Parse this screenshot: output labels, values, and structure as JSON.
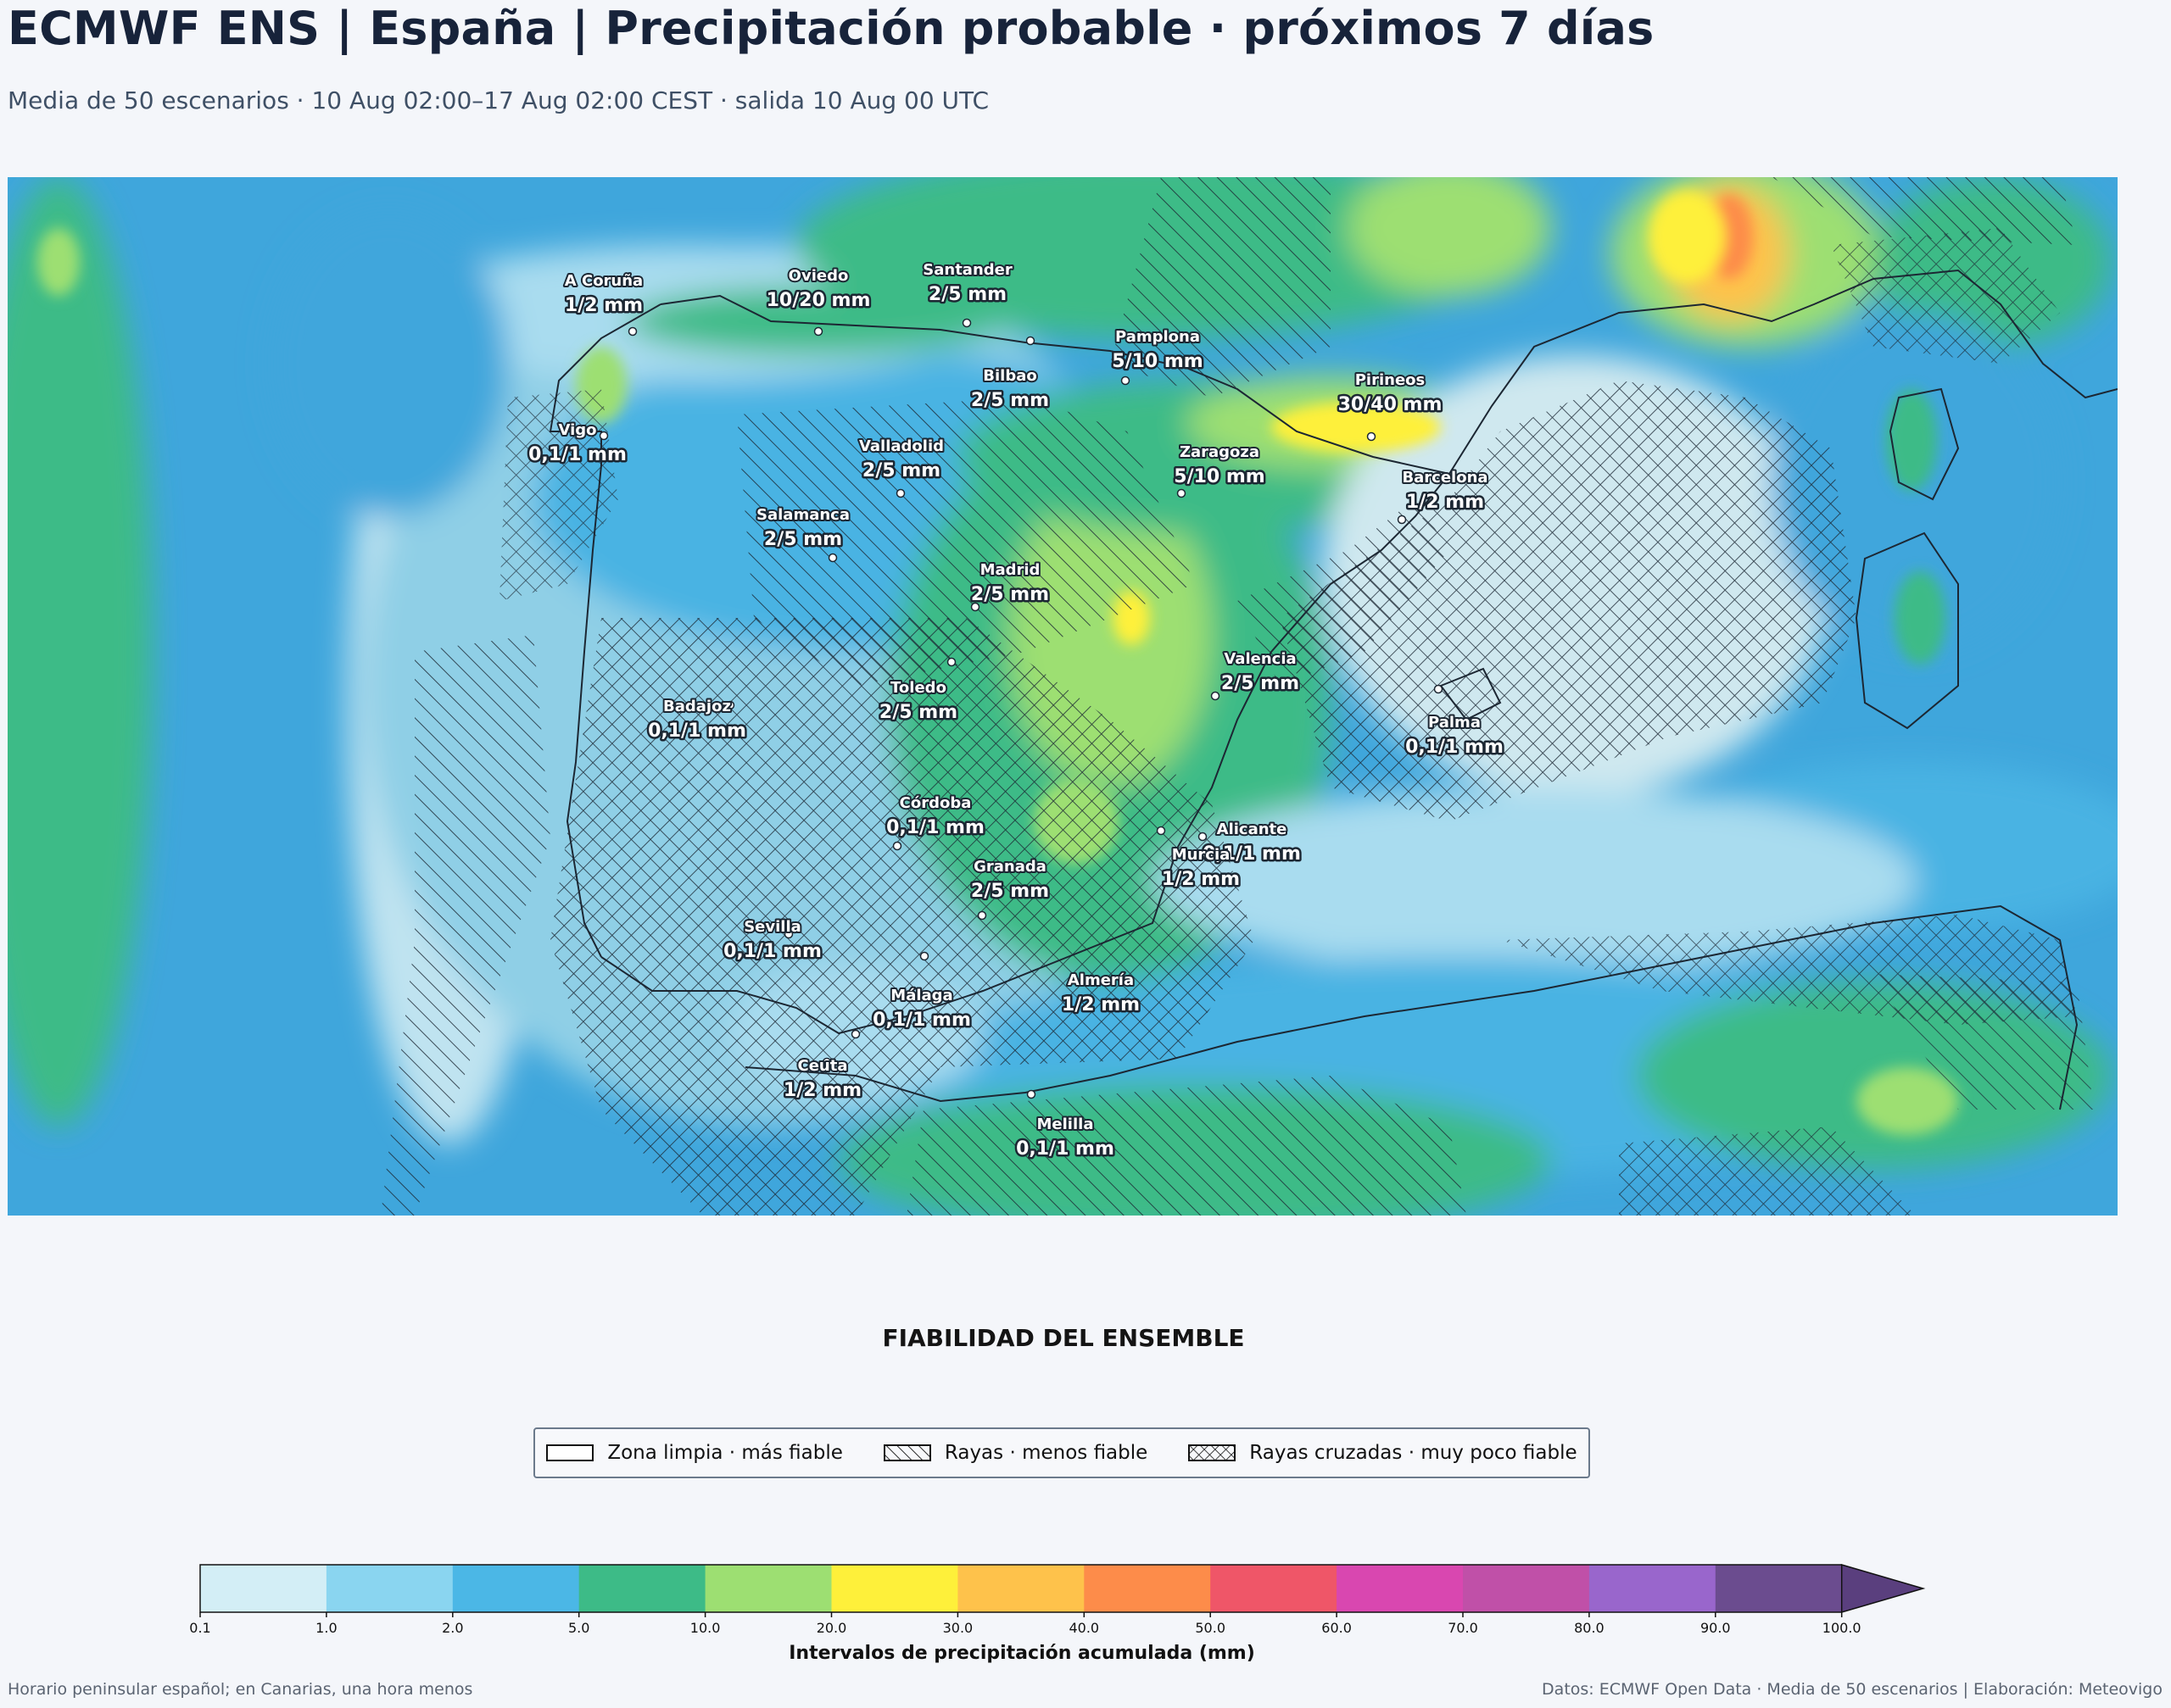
{
  "header": {
    "title": "ECMWF ENS | España | Precipitación probable · próximos 7 días",
    "subtitle": "Media de 50 escenarios · 10 Aug 02:00–17 Aug 02:00 CEST · salida 10 Aug 00 UTC"
  },
  "map": {
    "cities": [
      {
        "name": "A Coruña",
        "value": "1/2 mm"
      },
      {
        "name": "Oviedo",
        "value": "10/20 mm"
      },
      {
        "name": "Santander",
        "value": "2/5 mm"
      },
      {
        "name": "Pamplona",
        "value": "5/10 mm"
      },
      {
        "name": "Bilbao",
        "value": "2/5 mm"
      },
      {
        "name": "Pirineos",
        "value": "30/40 mm"
      },
      {
        "name": "Vigo",
        "value": "0,1/1 mm"
      },
      {
        "name": "Valladolid",
        "value": "2/5 mm"
      },
      {
        "name": "Zaragoza",
        "value": "5/10 mm"
      },
      {
        "name": "Barcelona",
        "value": "1/2 mm"
      },
      {
        "name": "Salamanca",
        "value": "2/5 mm"
      },
      {
        "name": "Madrid",
        "value": "2/5 mm"
      },
      {
        "name": "Valencia",
        "value": "2/5 mm"
      },
      {
        "name": "Toledo",
        "value": "2/5 mm"
      },
      {
        "name": "Badajoz",
        "value": "0,1/1 mm"
      },
      {
        "name": "Palma",
        "value": "0,1/1 mm"
      },
      {
        "name": "Córdoba",
        "value": "0,1/1 mm"
      },
      {
        "name": "Alicante",
        "value": "0,1/1 mm"
      },
      {
        "name": "Murcia",
        "value": "1/2 mm"
      },
      {
        "name": "Granada",
        "value": "2/5 mm"
      },
      {
        "name": "Sevilla",
        "value": "0,1/1 mm"
      },
      {
        "name": "Almería",
        "value": "1/2 mm"
      },
      {
        "name": "Málaga",
        "value": "0,1/1 mm"
      },
      {
        "name": "Ceuta",
        "value": "1/2 mm"
      },
      {
        "name": "Melilla",
        "value": "0,1/1 mm"
      }
    ]
  },
  "reliability": {
    "title": "FIABILIDAD DEL ENSEMBLE",
    "items": [
      {
        "label": "Zona limpia · más fiable",
        "pattern": "none"
      },
      {
        "label": "Rayas · menos fiable",
        "pattern": "hatch"
      },
      {
        "label": "Rayas cruzadas · muy poco fiable",
        "pattern": "crosshatch"
      }
    ]
  },
  "colorbar": {
    "label": "Intervalos de precipitación acumulada (mm)",
    "ticks": [
      "0.1",
      "1.0",
      "2.0",
      "5.0",
      "10.0",
      "20.0",
      "30.0",
      "40.0",
      "50.0",
      "60.0",
      "70.0",
      "80.0",
      "90.0",
      "100.0"
    ],
    "colors": [
      "#d3eef6",
      "#8ad5f0",
      "#4bb7e6",
      "#3dbb87",
      "#9ddf72",
      "#fef03a",
      "#fec24b",
      "#fd8c4a",
      "#ef5668",
      "#d947b0",
      "#c050a8",
      "#9966cc",
      "#6b4c8f"
    ],
    "extend_color": "#5a3f7e"
  },
  "footer": {
    "left": "Horario peninsular español; en Canarias, una hora menos",
    "right": "Datos: ECMWF Open Data · Media de 50 escenarios | Elaboración: Meteovigo"
  }
}
